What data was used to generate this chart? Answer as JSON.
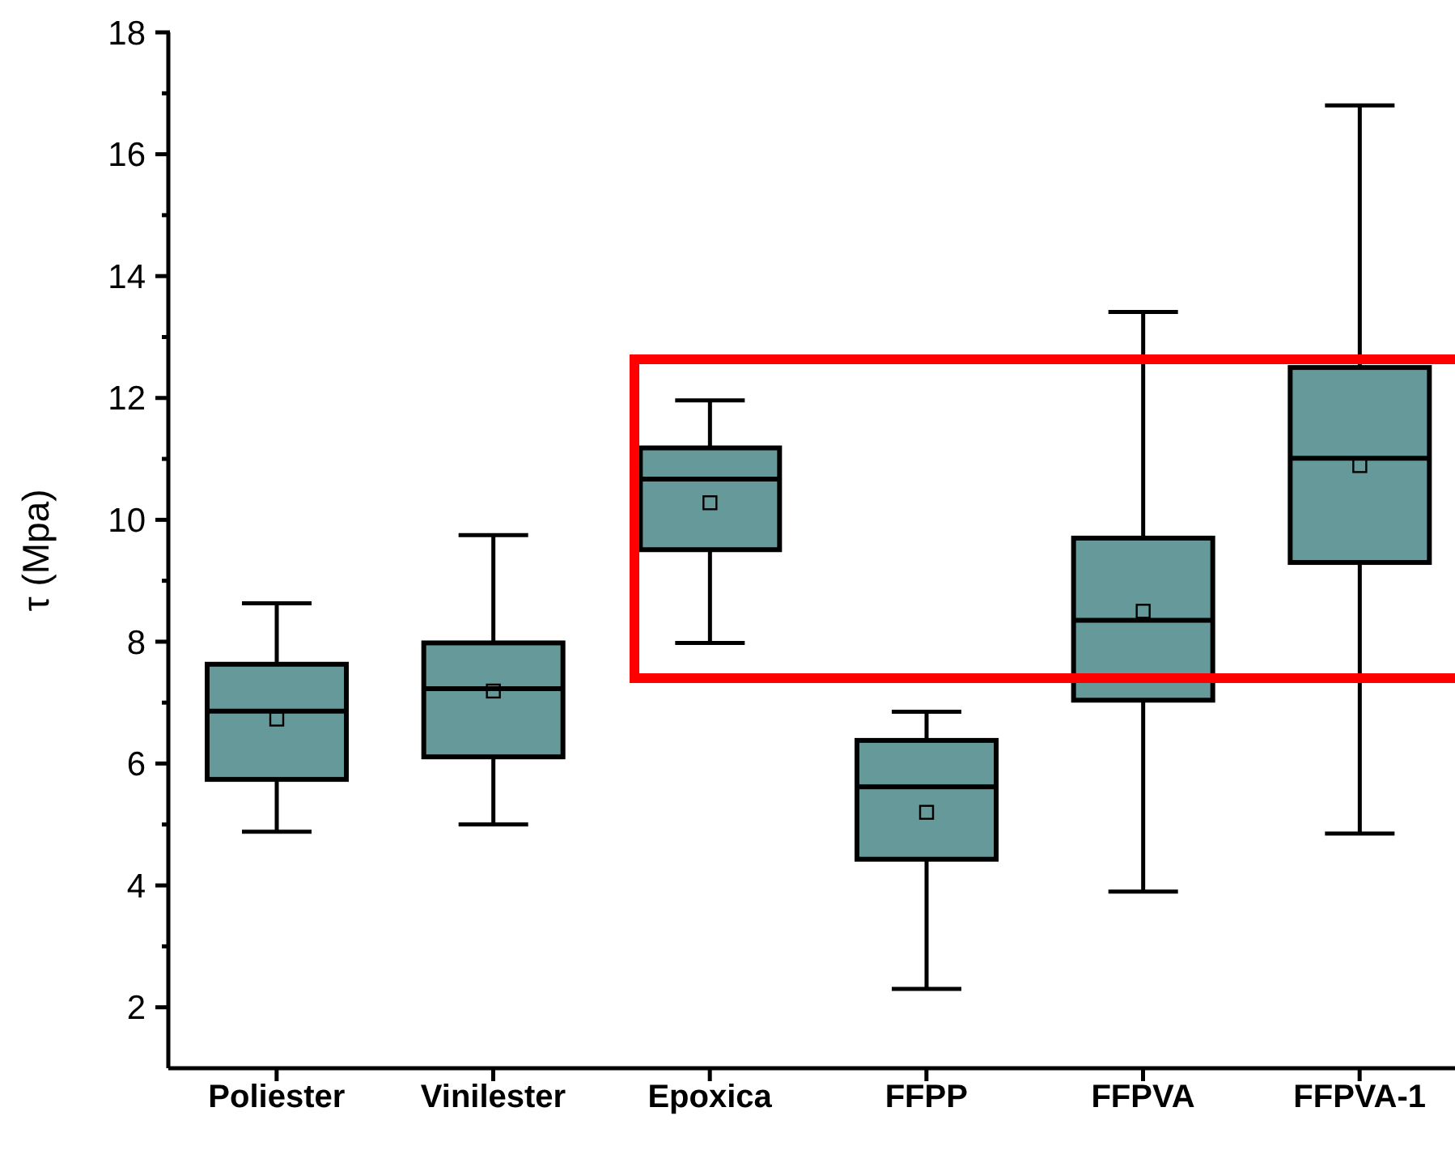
{
  "chart_data": {
    "type": "box",
    "ylabel": "τ (Mpa)",
    "categories": [
      "Poliester",
      "Vinilester",
      "Epoxica",
      "FFPP",
      "FFPVA",
      "FFPVA-1"
    ],
    "color": "#669999",
    "boxes": [
      {
        "low": 4.88,
        "q1": 5.74,
        "median": 6.86,
        "q3": 7.63,
        "high": 8.63,
        "mean": 6.73
      },
      {
        "low": 5.0,
        "q1": 6.11,
        "median": 7.23,
        "q3": 7.98,
        "high": 9.75,
        "mean": 7.19
      },
      {
        "low": 7.98,
        "q1": 9.51,
        "median": 10.67,
        "q3": 11.18,
        "high": 11.96,
        "mean": 10.28
      },
      {
        "low": 2.3,
        "q1": 4.43,
        "median": 5.62,
        "q3": 6.38,
        "high": 6.85,
        "mean": 5.2
      },
      {
        "low": 3.9,
        "q1": 7.04,
        "median": 8.35,
        "q3": 9.7,
        "high": 13.41,
        "mean": 8.5
      },
      {
        "low": 4.85,
        "q1": 9.3,
        "median": 11.01,
        "q3": 12.5,
        "high": 16.8,
        "mean": 10.89
      }
    ],
    "ylim": [
      1,
      18
    ],
    "yticks": [
      2,
      {
        "value": 3,
        "label": null
      },
      4,
      {
        "value": 5,
        "label": null
      },
      6,
      {
        "value": 7,
        "label": null
      },
      8,
      {
        "value": 9,
        "label": null
      },
      10,
      {
        "value": 11,
        "label": null
      },
      12,
      {
        "value": 13,
        "label": null
      },
      14,
      {
        "value": 15,
        "label": null
      },
      16,
      {
        "value": 17,
        "label": null
      },
      18
    ],
    "grid": false,
    "legend": false
  }
}
